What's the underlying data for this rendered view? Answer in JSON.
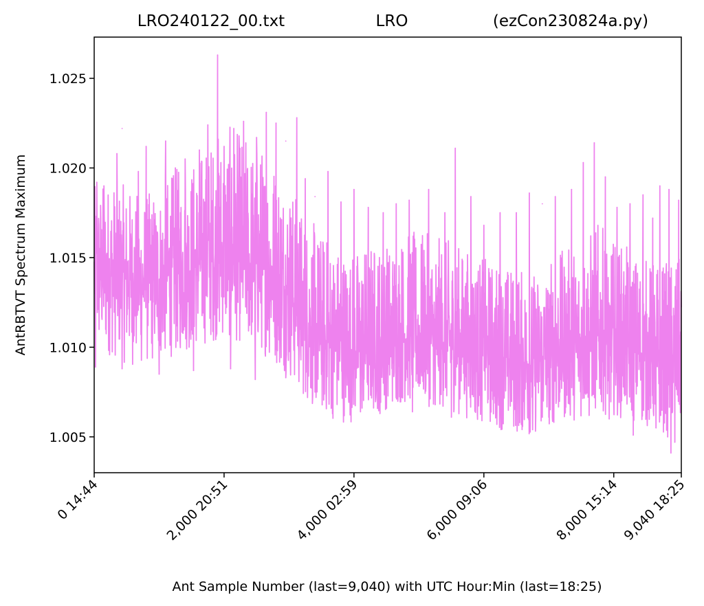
{
  "chart_data": {
    "type": "line",
    "title_left": "LRO240122_00.txt",
    "title_center": "LRO",
    "title_right": "(ezCon230824a.py)",
    "xlabel": "Ant Sample Number (last=9,040) with UTC Hour:Min (last=18:25)",
    "ylabel": "AntRBTVT Spectrum Maximum",
    "xlim": [
      0,
      9040
    ],
    "ylim": [
      1.003,
      1.0273
    ],
    "xticks": [
      {
        "value": 0,
        "label": "0  14:44"
      },
      {
        "value": 2000,
        "label": "2,000  20:51"
      },
      {
        "value": 4000,
        "label": "4,000  02:59"
      },
      {
        "value": 6000,
        "label": "6,000  09:06"
      },
      {
        "value": 8000,
        "label": "8,000  15:14"
      },
      {
        "value": 9040,
        "label": "9,040  18:25"
      }
    ],
    "yticks": [
      {
        "value": 1.005,
        "label": "1.005"
      },
      {
        "value": 1.01,
        "label": "1.010"
      },
      {
        "value": 1.015,
        "label": "1.015"
      },
      {
        "value": 1.02,
        "label": "1.020"
      },
      {
        "value": 1.025,
        "label": "1.025"
      }
    ],
    "grid": false,
    "series": [
      {
        "color": "#ee82ee",
        "x": [
          0,
          250,
          500,
          750,
          1000,
          1250,
          1500,
          1750,
          2000,
          2250,
          2500,
          2750,
          3000,
          3250,
          3500,
          3750,
          4000,
          4250,
          4500,
          4750,
          5000,
          5250,
          5500,
          5750,
          6000,
          6250,
          6500,
          6750,
          7000,
          7250,
          7500,
          7750,
          8000,
          8250,
          8500,
          8750,
          9040
        ],
        "mean": [
          1.014,
          1.014,
          1.0138,
          1.0135,
          1.0138,
          1.0142,
          1.0145,
          1.0148,
          1.015,
          1.0148,
          1.0145,
          1.014,
          1.013,
          1.0115,
          1.0105,
          1.01,
          1.0098,
          1.01,
          1.0102,
          1.0105,
          1.0105,
          1.0105,
          1.0103,
          1.01,
          1.0097,
          1.0095,
          1.0092,
          1.009,
          1.0095,
          1.0098,
          1.01,
          1.0105,
          1.0103,
          1.01,
          1.0095,
          1.0093,
          1.0095
        ],
        "upper": [
          1.019,
          1.0195,
          1.019,
          1.0185,
          1.019,
          1.02,
          1.0205,
          1.0215,
          1.0225,
          1.022,
          1.0215,
          1.021,
          1.0195,
          1.0175,
          1.0165,
          1.016,
          1.0155,
          1.016,
          1.016,
          1.0165,
          1.0165,
          1.0162,
          1.016,
          1.0155,
          1.015,
          1.0148,
          1.0145,
          1.0142,
          1.015,
          1.0155,
          1.016,
          1.017,
          1.016,
          1.0155,
          1.015,
          1.0148,
          1.015
        ],
        "lower": [
          1.0095,
          1.0095,
          1.009,
          1.0088,
          1.0092,
          1.0095,
          1.0098,
          1.0102,
          1.0105,
          1.0102,
          1.0098,
          1.0092,
          1.0082,
          1.007,
          1.0062,
          1.0058,
          1.0058,
          1.0062,
          1.0065,
          1.0068,
          1.0068,
          1.0066,
          1.0064,
          1.006,
          1.0057,
          1.0054,
          1.0051,
          1.005,
          1.0055,
          1.0058,
          1.006,
          1.0063,
          1.0062,
          1.0058,
          1.0055,
          1.0052,
          1.0055
        ],
        "spikes": [
          {
            "x": 40,
            "y": 1.0192
          },
          {
            "x": 150,
            "y": 1.019
          },
          {
            "x": 350,
            "y": 1.0208
          },
          {
            "x": 430,
            "y": 1.0222
          },
          {
            "x": 680,
            "y": 1.0198
          },
          {
            "x": 800,
            "y": 1.0212
          },
          {
            "x": 1100,
            "y": 1.0215
          },
          {
            "x": 1250,
            "y": 1.02
          },
          {
            "x": 1400,
            "y": 1.0205
          },
          {
            "x": 1620,
            "y": 1.021
          },
          {
            "x": 1750,
            "y": 1.0224
          },
          {
            "x": 1900,
            "y": 1.0263
          },
          {
            "x": 2000,
            "y": 1.0212
          },
          {
            "x": 2150,
            "y": 1.0222
          },
          {
            "x": 2300,
            "y": 1.0226
          },
          {
            "x": 2500,
            "y": 1.0217
          },
          {
            "x": 2650,
            "y": 1.0231
          },
          {
            "x": 2800,
            "y": 1.0225
          },
          {
            "x": 2950,
            "y": 1.0215
          },
          {
            "x": 3120,
            "y": 1.0228
          },
          {
            "x": 3250,
            "y": 1.0194
          },
          {
            "x": 3400,
            "y": 1.0184
          },
          {
            "x": 3600,
            "y": 1.0198
          },
          {
            "x": 3800,
            "y": 1.0181
          },
          {
            "x": 4000,
            "y": 1.0188
          },
          {
            "x": 4220,
            "y": 1.0178
          },
          {
            "x": 4450,
            "y": 1.0175
          },
          {
            "x": 4650,
            "y": 1.018
          },
          {
            "x": 4850,
            "y": 1.0182
          },
          {
            "x": 5150,
            "y": 1.0188
          },
          {
            "x": 5400,
            "y": 1.0175
          },
          {
            "x": 5560,
            "y": 1.0211
          },
          {
            "x": 5800,
            "y": 1.0184
          },
          {
            "x": 6000,
            "y": 1.0168
          },
          {
            "x": 6250,
            "y": 1.0175
          },
          {
            "x": 6500,
            "y": 1.0175
          },
          {
            "x": 6700,
            "y": 1.0186
          },
          {
            "x": 6900,
            "y": 1.018
          },
          {
            "x": 7100,
            "y": 1.0184
          },
          {
            "x": 7350,
            "y": 1.0188
          },
          {
            "x": 7530,
            "y": 1.0203
          },
          {
            "x": 7700,
            "y": 1.0214
          },
          {
            "x": 7870,
            "y": 1.0195
          },
          {
            "x": 8050,
            "y": 1.0178
          },
          {
            "x": 8250,
            "y": 1.018
          },
          {
            "x": 8450,
            "y": 1.0185
          },
          {
            "x": 8600,
            "y": 1.0172
          },
          {
            "x": 8710,
            "y": 1.019
          },
          {
            "x": 8850,
            "y": 1.0188
          },
          {
            "x": 9000,
            "y": 1.0182
          }
        ],
        "dips": [
          {
            "x": 20,
            "y": 1.0089
          },
          {
            "x": 430,
            "y": 1.0088
          },
          {
            "x": 1000,
            "y": 1.0085
          },
          {
            "x": 1530,
            "y": 1.0087
          },
          {
            "x": 2100,
            "y": 1.0088
          },
          {
            "x": 2480,
            "y": 1.0082
          },
          {
            "x": 2950,
            "y": 1.0083
          },
          {
            "x": 3400,
            "y": 1.0075
          },
          {
            "x": 3650,
            "y": 1.0066
          },
          {
            "x": 4100,
            "y": 1.0064
          },
          {
            "x": 4400,
            "y": 1.0063
          },
          {
            "x": 4900,
            "y": 1.0064
          },
          {
            "x": 5250,
            "y": 1.0068
          },
          {
            "x": 5500,
            "y": 1.0061
          },
          {
            "x": 5900,
            "y": 1.0062
          },
          {
            "x": 6200,
            "y": 1.0057
          },
          {
            "x": 6550,
            "y": 1.0058
          },
          {
            "x": 6750,
            "y": 1.0054
          },
          {
            "x": 6900,
            "y": 1.0061
          },
          {
            "x": 7000,
            "y": 1.0061
          },
          {
            "x": 7620,
            "y": 1.0062
          },
          {
            "x": 7930,
            "y": 1.006
          },
          {
            "x": 8300,
            "y": 1.0051
          },
          {
            "x": 8650,
            "y": 1.0055
          },
          {
            "x": 8830,
            "y": 1.005
          },
          {
            "x": 8940,
            "y": 1.0047
          },
          {
            "x": 8880,
            "y": 1.0041
          }
        ]
      }
    ]
  }
}
